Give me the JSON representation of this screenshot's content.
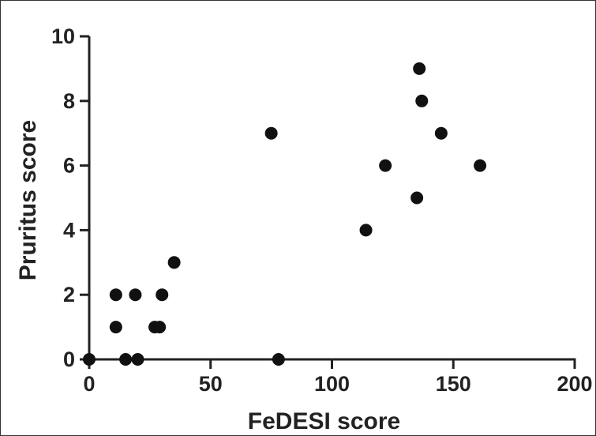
{
  "chart_data": {
    "type": "scatter",
    "title": "",
    "xlabel": "FeDESI score",
    "ylabel": "Pruritus score",
    "xlim": [
      0,
      200
    ],
    "ylim": [
      0,
      10
    ],
    "x_ticks": [
      0,
      50,
      100,
      150,
      200
    ],
    "y_ticks": [
      0,
      2,
      4,
      6,
      8,
      10
    ],
    "x_tick_labels": [
      "0",
      "50",
      "100",
      "150",
      "200"
    ],
    "y_tick_labels": [
      "0",
      "2",
      "4",
      "6",
      "8",
      "10"
    ],
    "grid": false,
    "marker_color": "#111111",
    "points": [
      {
        "x": 0,
        "y": 0
      },
      {
        "x": 15,
        "y": 0
      },
      {
        "x": 20,
        "y": 0
      },
      {
        "x": 78,
        "y": 0
      },
      {
        "x": 11,
        "y": 1
      },
      {
        "x": 27,
        "y": 1
      },
      {
        "x": 29,
        "y": 1
      },
      {
        "x": 11,
        "y": 2
      },
      {
        "x": 19,
        "y": 2
      },
      {
        "x": 30,
        "y": 2
      },
      {
        "x": 35,
        "y": 3
      },
      {
        "x": 114,
        "y": 4
      },
      {
        "x": 135,
        "y": 5
      },
      {
        "x": 122,
        "y": 6
      },
      {
        "x": 161,
        "y": 6
      },
      {
        "x": 75,
        "y": 7
      },
      {
        "x": 145,
        "y": 7
      },
      {
        "x": 137,
        "y": 8
      },
      {
        "x": 136,
        "y": 9
      }
    ]
  }
}
